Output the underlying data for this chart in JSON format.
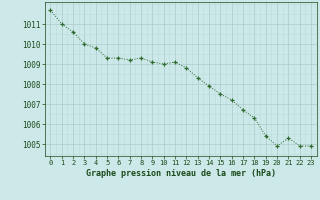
{
  "x": [
    0,
    1,
    2,
    3,
    4,
    5,
    6,
    7,
    8,
    9,
    10,
    11,
    12,
    13,
    14,
    15,
    16,
    17,
    18,
    19,
    20,
    21,
    22,
    23
  ],
  "y": [
    1011.7,
    1011.0,
    1010.6,
    1010.0,
    1009.8,
    1009.3,
    1009.3,
    1009.2,
    1009.3,
    1009.1,
    1009.0,
    1009.1,
    1008.8,
    1008.3,
    1007.9,
    1007.5,
    1007.2,
    1006.7,
    1006.3,
    1005.4,
    1004.9,
    1005.3,
    1004.9,
    1004.9
  ],
  "line_color": "#2d6a2d",
  "marker_color": "#2d6a2d",
  "bg_color": "#cce8e8",
  "grid_major_color": "#aacccc",
  "grid_minor_color": "#bbdddd",
  "xlabel": "Graphe pression niveau de la mer (hPa)",
  "xlabel_color": "#1a4a1a",
  "tick_color": "#1a4a1a",
  "ylim": [
    1004.4,
    1012.1
  ],
  "xlim": [
    -0.5,
    23.5
  ],
  "yticks": [
    1005,
    1006,
    1007,
    1008,
    1009,
    1010,
    1011
  ],
  "xticks": [
    0,
    1,
    2,
    3,
    4,
    5,
    6,
    7,
    8,
    9,
    10,
    11,
    12,
    13,
    14,
    15,
    16,
    17,
    18,
    19,
    20,
    21,
    22,
    23
  ],
  "tick_fontsize": 5.0,
  "xlabel_fontsize": 6.0
}
